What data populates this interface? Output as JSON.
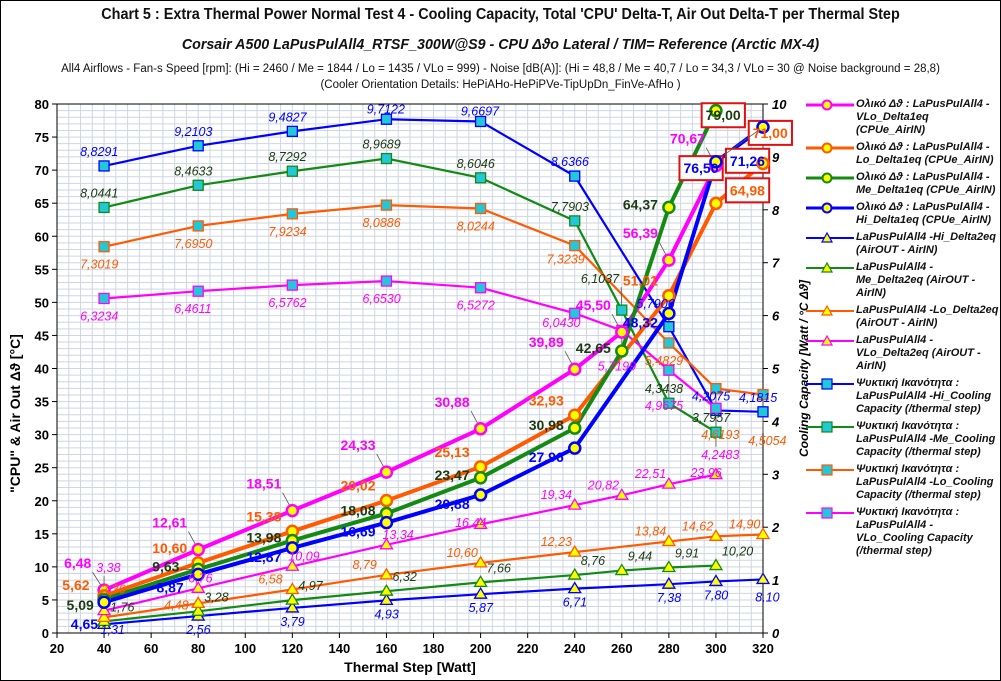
{
  "header": {
    "title": "Chart 5 :  Extra Thermal Power  Normal  Test  4  -  Cooling Capacity,    Total 'CPU' Delta-T,    Air Out Delta-T per Thermal Step",
    "subtitle": "Corsair A500  LaPusPulAll4_RTSF_300W@S9 - CPU  Δϑο Lateral / TIM= Reference (Arctic MX-4)",
    "info_line": "All4  Airflows  - Fan-s Speed [rpm]: (Hi = 2460 / Me = 1844 / Lo = 1435 / VLo = 999) - Noise  [dB(A)]: (Hi = 48,8 / Me = 40,7 / Lo = 34,3 / VLo = 30 @ Noise background = 28,8)",
    "orientation_line": "(Cooler  Orientation Details: HePiAHo-HePiPVe-TipUpDn_FinVe-AfHo  )"
  },
  "chart_data": {
    "type": "line",
    "xlabel": "Thermal Step [Watt]",
    "ylabel": "\"CPU\"  &  Air Out  Δϑ  [°C]",
    "y2label": "Cooling Capacity  [Watt / °C Δϑ]",
    "xlim": [
      20,
      320
    ],
    "ylim": [
      0,
      80
    ],
    "y2lim": [
      0,
      10
    ],
    "xticks": [
      20,
      40,
      60,
      80,
      100,
      120,
      140,
      160,
      180,
      200,
      220,
      240,
      260,
      280,
      300,
      320
    ],
    "yticks": [
      0,
      5,
      10,
      15,
      20,
      25,
      30,
      35,
      40,
      45,
      50,
      55,
      60,
      65,
      70,
      75,
      80
    ],
    "y2ticks": [
      0,
      1,
      2,
      3,
      4,
      5,
      6,
      7,
      8,
      9,
      10
    ],
    "grid": true,
    "legend_position": "right",
    "colors": {
      "VLo": "#ff00ff",
      "Lo": "#ff5a00",
      "Me": "#138a13",
      "Hi": "#0000ff",
      "marker_fill": "#ffff00",
      "square_fill": "#22c8d8"
    },
    "series": [
      {
        "name": "Ολικό Δϑ : LaPusPulAll4 - VLo_Delta1eq  (CPUe_AirIN)",
        "group": "VLo",
        "kind": "delta1",
        "axis": "left",
        "x": [
          40,
          80,
          120,
          160,
          200,
          240,
          260,
          280,
          300
        ],
        "y": [
          6.48,
          12.61,
          18.51,
          24.33,
          30.88,
          39.89,
          45.5,
          56.39,
          70.67
        ],
        "labels": [
          "6,48",
          "12,61",
          "18,51",
          "24,33",
          "30,88",
          "39,89",
          "45,50",
          "56,39",
          "70,67"
        ],
        "boxed": []
      },
      {
        "name": "Ολικό Δϑ : LaPusPulAll4 - Lo_Delta1eq  (CPUe_AirIN)",
        "group": "Lo",
        "kind": "delta1",
        "axis": "left",
        "x": [
          40,
          80,
          120,
          160,
          200,
          240,
          280,
          300,
          320
        ],
        "y": [
          5.62,
          10.6,
          15.38,
          20.02,
          25.13,
          32.93,
          51.01,
          64.98,
          71.0
        ],
        "labels": [
          "5,62",
          "10,60",
          "15,38",
          "20,02",
          "25,13",
          "32,93",
          "51,01",
          "64,98",
          "71,00"
        ],
        "boxed": [
          300,
          320
        ]
      },
      {
        "name": "Ολικό Δϑ : LaPusPulAll4 - Me_Delta1eq  (CPUe_AirIN)",
        "group": "Me",
        "kind": "delta1",
        "axis": "left",
        "x": [
          40,
          80,
          120,
          160,
          200,
          240,
          260,
          280,
          300
        ],
        "y": [
          5.09,
          9.63,
          13.98,
          18.08,
          23.47,
          30.98,
          42.65,
          64.37,
          79.0
        ],
        "labels": [
          "5,09",
          "9,63",
          "13,98",
          "18,08",
          "23,47",
          "30,98",
          "42,65",
          "64,37",
          "79,00"
        ],
        "boxed": [
          300
        ]
      },
      {
        "name": "Ολικό Δϑ : LaPusPulAll4 - Hi_Delta1eq  (CPUe_AirIN)",
        "group": "Hi",
        "kind": "delta1",
        "axis": "left",
        "x": [
          40,
          80,
          120,
          160,
          200,
          240,
          280,
          300,
          320
        ],
        "y": [
          4.65,
          8.87,
          12.87,
          16.69,
          20.88,
          27.96,
          48.32,
          71.26,
          76.5
        ],
        "labels": [
          "4,65",
          "8,87",
          "12,87",
          "16,69",
          "20,88",
          "27,96",
          "48,32",
          "71,26",
          "76,50"
        ],
        "boxed": [
          300,
          320
        ]
      },
      {
        "name": "LaPusPulAll4 -Hi_Delta2eq (AirOUT - AirIN)",
        "group": "Hi",
        "kind": "delta2",
        "axis": "left",
        "x": [
          40,
          80,
          120,
          160,
          200,
          240,
          280,
          300,
          320
        ],
        "y": [
          1.31,
          2.56,
          3.79,
          4.93,
          5.87,
          6.71,
          7.38,
          7.8,
          8.1
        ],
        "labels": [
          "1,31",
          "2,56",
          "3,79",
          "4,93",
          "5,87",
          "6,71",
          "7,38",
          "7,80",
          "8,10"
        ],
        "boxed": []
      },
      {
        "name": "LaPusPulAll4 -Me_Delta2eq (AirOUT - AirIN)",
        "group": "Me",
        "kind": "delta2",
        "axis": "left",
        "x": [
          40,
          80,
          120,
          160,
          200,
          240,
          260,
          280,
          300
        ],
        "y": [
          1.76,
          3.28,
          4.97,
          6.32,
          7.66,
          8.76,
          9.44,
          9.91,
          10.2
        ],
        "labels": [
          "1,76",
          "3,28",
          "4,97",
          "6,32",
          "7,66",
          "8,76",
          "9,44",
          "9,91",
          "10,20"
        ],
        "boxed": []
      },
      {
        "name": "LaPusPulAll4 -Lo_Delta2eq (AirOUT - AirIN)",
        "group": "Lo",
        "kind": "delta2",
        "axis": "left",
        "x": [
          40,
          80,
          120,
          160,
          200,
          240,
          280,
          300,
          320
        ],
        "y": [
          2.36,
          4.48,
          6.58,
          8.79,
          10.6,
          12.23,
          13.84,
          14.62,
          14.9
        ],
        "labels": [
          "2,36",
          "4,48",
          "6,58",
          "8,79",
          "10,60",
          "12,23",
          "13,84",
          "14,62",
          "14,90"
        ],
        "boxed": []
      },
      {
        "name": "LaPusPulAll4 -VLo_Delta2eq (AirOUT - AirIN)",
        "group": "VLo",
        "kind": "delta2",
        "axis": "left",
        "x": [
          40,
          80,
          120,
          160,
          200,
          240,
          260,
          280,
          300
        ],
        "y": [
          3.38,
          6.76,
          10.09,
          13.34,
          16.44,
          19.34,
          20.82,
          22.51,
          23.96
        ],
        "labels": [
          "3,38",
          "6,76",
          "10,09",
          "13,34",
          "16,44",
          "19,34",
          "20,82",
          "22,51",
          "23,96"
        ],
        "boxed": []
      },
      {
        "name": "Ψυκτική Ικανότητα : LaPusPulAll4 -Hi_Cooling Capacity (/thermal step)",
        "group": "Hi",
        "kind": "cooling",
        "axis": "right",
        "x": [
          40,
          80,
          120,
          160,
          200,
          240,
          280,
          300,
          320
        ],
        "y": [
          8.8291,
          9.2103,
          9.4827,
          9.7122,
          9.6697,
          8.6366,
          5.7906,
          4.2075,
          4.1815
        ],
        "labels": [
          "8,8291",
          "9,2103",
          "9,4827",
          "9,7122",
          "9,6697",
          "8,6366",
          "5,7906",
          "4,2075",
          "4,1815"
        ],
        "boxed": []
      },
      {
        "name": "Ψυκτική Ικανότητα : LaPusPulAll4 -Me_Cooling Capacity (/thermal step)",
        "group": "Me",
        "kind": "cooling",
        "axis": "right",
        "x": [
          40,
          80,
          120,
          160,
          200,
          240,
          260,
          280,
          300
        ],
        "y": [
          8.0441,
          8.4633,
          8.7292,
          8.9689,
          8.6046,
          7.7903,
          6.1037,
          4.3438,
          3.7957
        ],
        "labels": [
          "8,0441",
          "8,4633",
          "8,7292",
          "8,9689",
          "8,6046",
          "7,7903",
          "6,1037",
          "4,3438",
          "3,7957"
        ],
        "boxed": []
      },
      {
        "name": "Ψυκτική Ικανότητα : LaPusPulAll4 -Lo_Cooling Capacity (/thermal step)",
        "group": "Lo",
        "kind": "cooling",
        "axis": "right",
        "x": [
          40,
          80,
          120,
          160,
          200,
          240,
          280,
          300,
          320
        ],
        "y": [
          7.3019,
          7.695,
          7.9234,
          8.0886,
          8.0244,
          7.3239,
          5.4829,
          4.6193,
          4.5054
        ],
        "labels": [
          "7,3019",
          "7,6950",
          "7,9234",
          "8,0886",
          "8,0244",
          "7,3239",
          "5,4829",
          "4,6193",
          "4,5054"
        ],
        "boxed": []
      },
      {
        "name": "Ψυκτική Ικανότητα : LaPusPulAll4 -VLo_Cooling Capacity (/thermal step)",
        "group": "VLo",
        "kind": "cooling",
        "axis": "right",
        "x": [
          40,
          80,
          120,
          160,
          200,
          240,
          260,
          280,
          300
        ],
        "y": [
          6.3234,
          6.4611,
          6.5762,
          6.653,
          6.5272,
          6.043,
          5.7199,
          4.9675,
          4.2483
        ],
        "labels": [
          "6,3234",
          "6,4611",
          "6,5762",
          "6,6530",
          "6,5272",
          "6,0430",
          "5,7199",
          "4,9675",
          "4,2483"
        ],
        "boxed": []
      }
    ]
  }
}
